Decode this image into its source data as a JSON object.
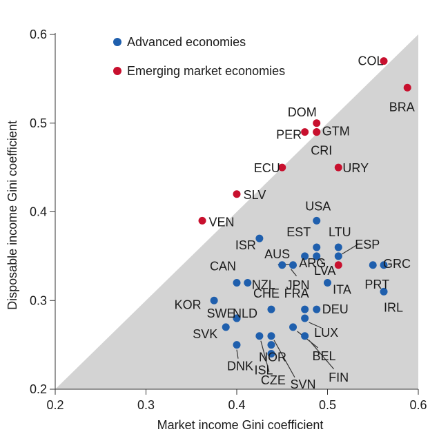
{
  "chart_data": {
    "type": "scatter",
    "xlabel": "Market income Gini coefficient",
    "ylabel": "Disposable income Gini coefficient",
    "xlim": [
      0.2,
      0.6
    ],
    "ylim": [
      0.2,
      0.6
    ],
    "x_ticks": [
      "0.2",
      "0.3",
      "0.4",
      "0.5",
      "0.6"
    ],
    "y_ticks": [
      "0.2",
      "0.3",
      "0.4",
      "0.5",
      "0.6"
    ],
    "grid": false,
    "shaded_region": "below 45-degree line (y <= x)",
    "legend_position": "top-left",
    "colors": {
      "advanced": "#1f5fad",
      "emerging": "#c8102e",
      "shade": "#d3d3d3",
      "leader": "#333333"
    },
    "series": [
      {
        "name": "Advanced economies",
        "key": "advanced",
        "points": [
          {
            "label": "KOR",
            "x": 0.375,
            "y": 0.3
          },
          {
            "label": "USA",
            "x": 0.488,
            "y": 0.39
          },
          {
            "label": "EST",
            "x": 0.488,
            "y": 0.36
          },
          {
            "label": "LTU",
            "x": 0.512,
            "y": 0.36
          },
          {
            "label": "ESP",
            "x": 0.512,
            "y": 0.35
          },
          {
            "label": "ISR",
            "x": 0.425,
            "y": 0.37
          },
          {
            "label": "AUS",
            "x": 0.475,
            "y": 0.35
          },
          {
            "label": "LVA",
            "x": 0.488,
            "y": 0.35
          },
          {
            "label": "JPN",
            "x": 0.462,
            "y": 0.34
          },
          {
            "label": "ARG",
            "x": 0.45,
            "y": 0.34
          },
          {
            "label": "GRC",
            "x": 0.562,
            "y": 0.34
          },
          {
            "label": "PRT",
            "x": 0.55,
            "y": 0.34
          },
          {
            "label": "CAN",
            "x": 0.4,
            "y": 0.32
          },
          {
            "label": "NZL",
            "x": 0.412,
            "y": 0.32
          },
          {
            "label": "ITA",
            "x": 0.5,
            "y": 0.32
          },
          {
            "label": "IRL",
            "x": 0.562,
            "y": 0.31
          },
          {
            "label": "CHE",
            "x": 0.438,
            "y": 0.29
          },
          {
            "label": "FRA",
            "x": 0.475,
            "y": 0.29
          },
          {
            "label": "DEU",
            "x": 0.488,
            "y": 0.29
          },
          {
            "label": "SWE",
            "x": 0.4,
            "y": 0.28
          },
          {
            "label": "NLD",
            "x": 0.4,
            "y": 0.28
          },
          {
            "label": "LUX",
            "x": 0.475,
            "y": 0.28
          },
          {
            "label": "SVK",
            "x": 0.388,
            "y": 0.27
          },
          {
            "label": "BEL",
            "x": 0.462,
            "y": 0.27
          },
          {
            "label": "SVN",
            "x": 0.438,
            "y": 0.26
          },
          {
            "label": "CZE",
            "x": 0.425,
            "y": 0.26
          },
          {
            "label": "FIN",
            "x": 0.475,
            "y": 0.26
          },
          {
            "label": "NOR",
            "x": 0.438,
            "y": 0.25
          },
          {
            "label": "DNK",
            "x": 0.4,
            "y": 0.25
          },
          {
            "label": "ISL",
            "x": 0.438,
            "y": 0.24
          }
        ]
      },
      {
        "name": "Emerging market economies",
        "key": "emerging",
        "points": [
          {
            "label": "COL",
            "x": 0.562,
            "y": 0.57
          },
          {
            "label": "BRA",
            "x": 0.588,
            "y": 0.54
          },
          {
            "label": "DOM",
            "x": 0.488,
            "y": 0.5
          },
          {
            "label": "GTM",
            "x": 0.488,
            "y": 0.49
          },
          {
            "label": "PER",
            "x": 0.475,
            "y": 0.49
          },
          {
            "label": "CRI",
            "x": 0.488,
            "y": 0.49
          },
          {
            "label": "ECU",
            "x": 0.45,
            "y": 0.45
          },
          {
            "label": "URY",
            "x": 0.512,
            "y": 0.45
          },
          {
            "label": "SLV",
            "x": 0.4,
            "y": 0.42
          },
          {
            "label": "VEN",
            "x": 0.362,
            "y": 0.39
          },
          {
            "label": "ARG",
            "x": 0.512,
            "y": 0.34
          }
        ]
      }
    ]
  }
}
